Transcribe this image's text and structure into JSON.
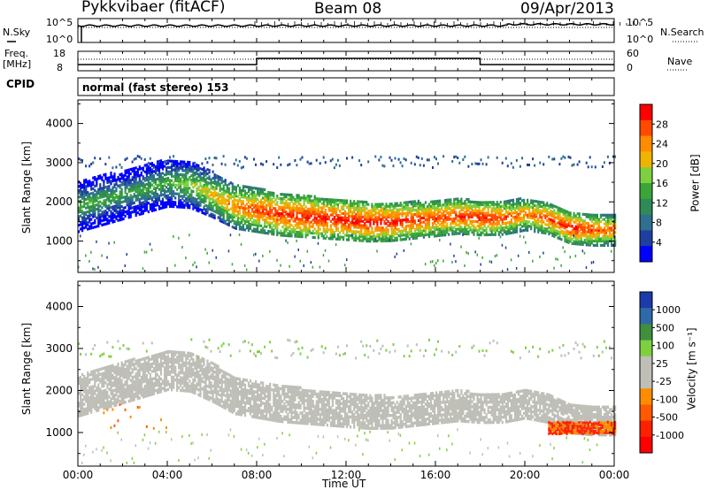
{
  "header": {
    "radar": "Pykkvibaer (fitACF)",
    "beam": "Beam 08",
    "date": "09/Apr/2013"
  },
  "panels": {
    "nsky_label": "N.Sky",
    "nsearch_label": "N.Search",
    "freq_label_1": "Freq.",
    "freq_label_2": "[MHz]",
    "nave_label": "Nave",
    "cpid_label": "CPID",
    "cpid_value": "normal (fast stereo) 153",
    "nsky_ticks": [
      "10^5",
      "10^0"
    ],
    "nsearch_ticks": [
      "10^5",
      "10^0"
    ],
    "freq_ticks": [
      "18",
      "8"
    ],
    "nave_ticks": [
      "60",
      "0"
    ]
  },
  "colorbars": {
    "power": {
      "label": "Power [dB]",
      "ticks": [
        "28",
        "24",
        "20",
        "16",
        "12",
        "8",
        "4"
      ],
      "colors": [
        "#ff0000",
        "#ff4a00",
        "#ff8c00",
        "#f0b400",
        "#7fd040",
        "#3aa63a",
        "#2e8b57",
        "#2f6f8f",
        "#1f3fa0",
        "#0000ff"
      ]
    },
    "velocity": {
      "label": "Velocity [m s⁻¹]",
      "ticks": [
        "1000",
        "500",
        "100",
        "25",
        "-25",
        "-100",
        "-500",
        "-1000"
      ],
      "colors": [
        "#1c3aa9",
        "#2d6aa7",
        "#3f8f3f",
        "#7fd040",
        "#bfbfb8",
        "#bfbfb8",
        "#ff8c00",
        "#ff5a00",
        "#ff2000",
        "#ff0000"
      ]
    }
  },
  "chart_data": [
    {
      "type": "heatmap",
      "name": "power",
      "ylabel": "Slant Range [km]",
      "ylim": [
        200,
        4600
      ],
      "yticks": [
        "4000",
        "3000",
        "2000",
        "1000"
      ],
      "colorbar_label": "Power [dB]",
      "colorbar_ticks": [
        28,
        24,
        20,
        16,
        12,
        8,
        4
      ],
      "echo_band_center_km": [
        [
          0,
          1900
        ],
        [
          1,
          2050
        ],
        [
          2,
          2200
        ],
        [
          3,
          2350
        ],
        [
          4,
          2500
        ],
        [
          5,
          2450
        ],
        [
          6,
          2200
        ],
        [
          7,
          1900
        ],
        [
          8,
          1800
        ],
        [
          9,
          1700
        ],
        [
          10,
          1650
        ],
        [
          11,
          1600
        ],
        [
          12,
          1550
        ],
        [
          13,
          1500
        ],
        [
          14,
          1500
        ],
        [
          15,
          1550
        ],
        [
          16,
          1600
        ],
        [
          17,
          1650
        ],
        [
          18,
          1600
        ],
        [
          19,
          1600
        ],
        [
          20,
          1700
        ],
        [
          21,
          1600
        ],
        [
          22,
          1350
        ],
        [
          23,
          1300
        ],
        [
          24,
          1300
        ]
      ],
      "peak_power_db": [
        [
          0,
          14
        ],
        [
          2,
          12
        ],
        [
          4,
          14
        ],
        [
          6,
          20
        ],
        [
          8,
          26
        ],
        [
          10,
          28
        ],
        [
          12,
          28
        ],
        [
          14,
          28
        ],
        [
          16,
          26
        ],
        [
          18,
          28
        ],
        [
          20,
          24
        ],
        [
          22,
          28
        ],
        [
          24,
          24
        ]
      ]
    },
    {
      "type": "heatmap",
      "name": "velocity",
      "xlabel": "Time UT",
      "ylabel": "Slant Range [km]",
      "ylim": [
        200,
        4600
      ],
      "yticks": [
        "4000",
        "3000",
        "2000",
        "1000"
      ],
      "xticks": [
        "00:00",
        "04:00",
        "08:00",
        "12:00",
        "16:00",
        "20:00",
        "00:00"
      ],
      "colorbar_label": "Velocity [m s⁻¹]",
      "colorbar_ticks": [
        1000,
        500,
        100,
        25,
        -25,
        -100,
        -500,
        -1000
      ]
    }
  ]
}
